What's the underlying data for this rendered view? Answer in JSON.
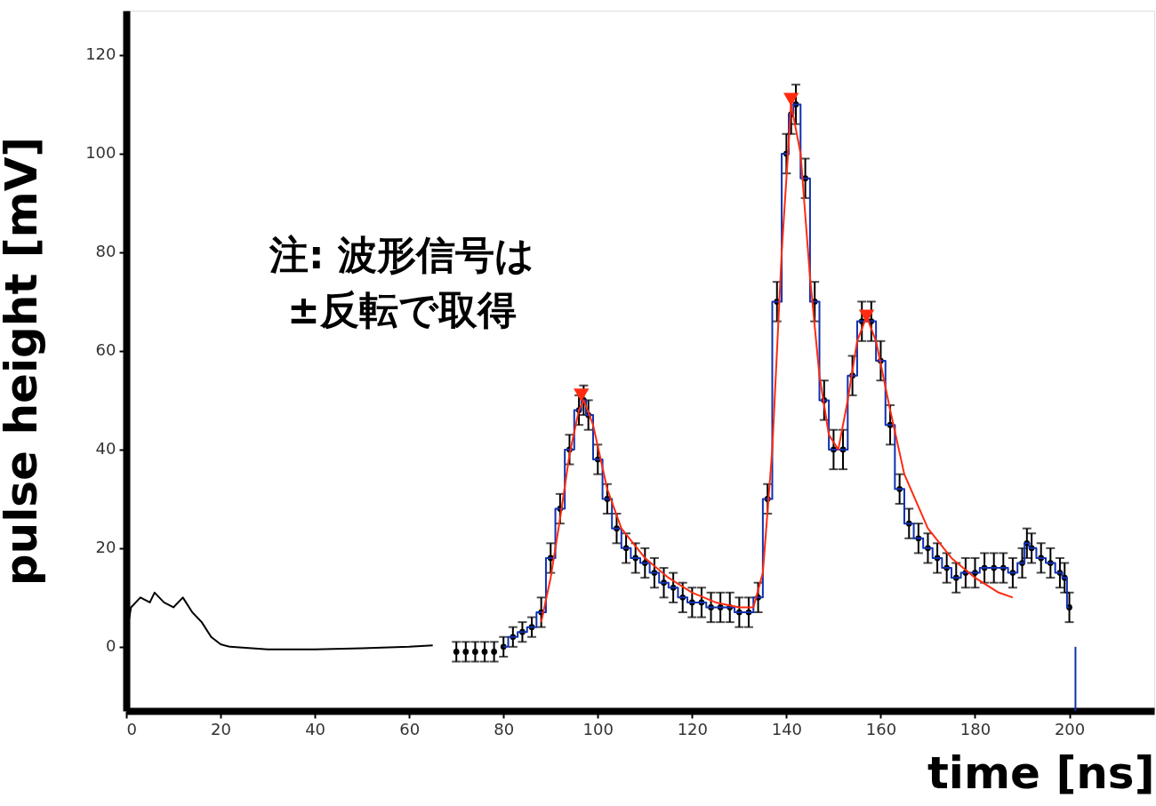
{
  "chart_data": {
    "type": "line",
    "xlabel": "time [ns]",
    "ylabel": "pulse height [mV]",
    "annotations": [
      "注: 波形信号は\n±反転で取得"
    ],
    "xlim": [
      0,
      218
    ],
    "ylim": [
      -13,
      129
    ],
    "xticks": [
      0,
      20,
      40,
      60,
      80,
      100,
      120,
      140,
      160,
      180,
      200
    ],
    "yticks": [
      0,
      20,
      40,
      60,
      80,
      100,
      120
    ],
    "grid": false,
    "series": [
      {
        "color": "#000000",
        "marker": "none",
        "x": [
          0,
          1,
          3,
          5,
          6,
          8,
          10,
          12,
          14,
          16,
          18,
          20,
          22,
          30,
          40,
          50,
          60,
          65
        ],
        "values": [
          2,
          8,
          10,
          9,
          11,
          9,
          8,
          10,
          7,
          5,
          2,
          0.5,
          0,
          -0.5,
          -0.5,
          -0.3,
          0,
          0.3
        ]
      },
      {
        "type": "scatter",
        "color": "#000000",
        "marker": "circle",
        "x": [
          70,
          72,
          74,
          76,
          78,
          80,
          82,
          84,
          86,
          88,
          90,
          92,
          94,
          96,
          97,
          98,
          100,
          102,
          104,
          106,
          108,
          110,
          112,
          114,
          116,
          118,
          120,
          122,
          124,
          126,
          128,
          130,
          132,
          134,
          136,
          138,
          140,
          141,
          142,
          144,
          146,
          148,
          150,
          152,
          154,
          156,
          158,
          160,
          162,
          164,
          166,
          168,
          170,
          172,
          174,
          176,
          178,
          180,
          182,
          184,
          186,
          188,
          190,
          191,
          192,
          194,
          196,
          198,
          199,
          200
        ],
        "values": [
          -1,
          -1,
          -1,
          -1,
          -1,
          0,
          2,
          3,
          4,
          7,
          18,
          28,
          40,
          48,
          50,
          47,
          38,
          30,
          24,
          20,
          18,
          17,
          15,
          13,
          12,
          10,
          9,
          9,
          8,
          8,
          8,
          7,
          7,
          10,
          30,
          70,
          100,
          108,
          110,
          95,
          70,
          50,
          40,
          40,
          55,
          66,
          66,
          58,
          45,
          32,
          25,
          22,
          20,
          18,
          16,
          14,
          15,
          15,
          16,
          16,
          16,
          15,
          17,
          21,
          20,
          18,
          17,
          15,
          14,
          8
        ],
        "errors": [
          2,
          2,
          2,
          2,
          2,
          2,
          2,
          2,
          2,
          3,
          3,
          3,
          3,
          3,
          3,
          3,
          3,
          3,
          3,
          3,
          3,
          3,
          3,
          3,
          3,
          3,
          3,
          3,
          3,
          3,
          3,
          3,
          3,
          3,
          3,
          4,
          4,
          4,
          4,
          4,
          4,
          4,
          4,
          4,
          4,
          4,
          4,
          4,
          4,
          3,
          3,
          3,
          3,
          3,
          3,
          3,
          3,
          3,
          3,
          3,
          3,
          3,
          3,
          3,
          3,
          3,
          3,
          3,
          3,
          3
        ]
      },
      {
        "type": "step",
        "color": "#1030b0",
        "marker": "none",
        "x": [
          80,
          82,
          84,
          86,
          88,
          90,
          92,
          94,
          96,
          97,
          98,
          100,
          102,
          104,
          106,
          108,
          110,
          112,
          114,
          116,
          118,
          120,
          122,
          124,
          126,
          128,
          130,
          132,
          134,
          136,
          138,
          140,
          141,
          142,
          144,
          146,
          148,
          150,
          152,
          154,
          156,
          158,
          160,
          162,
          164,
          166,
          168,
          170,
          172,
          174,
          176,
          178,
          180,
          182,
          184,
          186,
          188,
          190,
          191,
          192,
          194,
          196,
          198,
          199,
          200
        ],
        "values": [
          0,
          2,
          3,
          4,
          7,
          18,
          28,
          40,
          48,
          50,
          47,
          38,
          30,
          24,
          20,
          18,
          17,
          15,
          13,
          12,
          10,
          9,
          9,
          8,
          8,
          8,
          7,
          7,
          10,
          30,
          70,
          100,
          108,
          110,
          95,
          70,
          50,
          40,
          40,
          55,
          66,
          66,
          58,
          45,
          32,
          25,
          22,
          20,
          18,
          16,
          14,
          15,
          15,
          16,
          16,
          16,
          15,
          17,
          21,
          20,
          18,
          17,
          15,
          14,
          8
        ]
      },
      {
        "color": "#ff2a10",
        "marker": "none",
        "x": [
          88,
          90,
          92,
          94,
          96,
          97,
          99,
          102,
          105,
          110,
          115,
          120,
          125,
          130,
          133,
          135,
          137,
          139,
          141,
          143,
          145,
          147,
          149,
          151,
          153,
          155,
          157,
          159,
          162,
          165,
          170,
          175,
          180,
          185,
          188
        ],
        "values": [
          5,
          14,
          26,
          39,
          48,
          50,
          45,
          32,
          24,
          18,
          14,
          11,
          9,
          8,
          8,
          15,
          40,
          80,
          110,
          100,
          75,
          55,
          43,
          40,
          50,
          62,
          67,
          62,
          48,
          35,
          24,
          18,
          14,
          11,
          10
        ]
      },
      {
        "type": "scatter",
        "color": "#ff2a10",
        "marker": "triangle",
        "x": [
          96.5,
          141,
          157
        ],
        "values": [
          51,
          111,
          67
        ]
      },
      {
        "color": "#1030b0",
        "marker": "none",
        "x": [
          201.3,
          201.3
        ],
        "values": [
          0,
          -13
        ]
      }
    ]
  }
}
